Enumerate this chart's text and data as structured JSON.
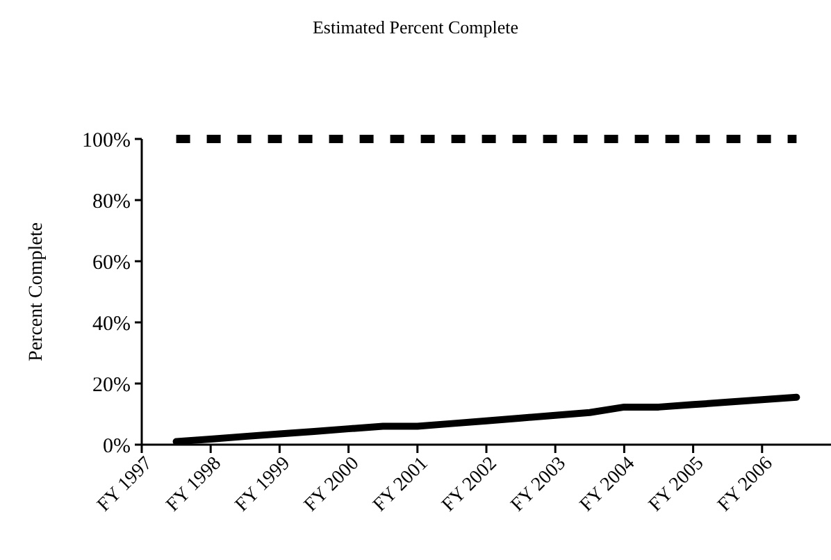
{
  "chart_data": {
    "type": "line",
    "title": "Estimated Percent Complete",
    "ylabel": "Percent Complete",
    "categories": [
      "FY 1997",
      null,
      "FY 1998",
      null,
      "FY 1999",
      null,
      "FY 2000",
      null,
      "FY 2001",
      null,
      "FY 2002",
      null,
      "FY 2003",
      null,
      "FY 2004",
      null,
      "FY 2005",
      null,
      "FY 2006",
      null
    ],
    "series": [
      {
        "color": "#000000",
        "line_style": "dashed",
        "values": [
          null,
          100,
          100,
          100,
          100,
          100,
          100,
          100,
          100,
          100,
          100,
          100,
          100,
          100,
          100,
          100,
          100,
          100,
          100,
          100
        ]
      },
      {
        "color": "#000000",
        "line_style": "solid",
        "values": [
          null,
          1,
          1.8,
          2.7,
          3.5,
          4.3,
          5.2,
          6,
          6,
          6.9,
          7.8,
          8.7,
          9.6,
          10.5,
          12.3,
          12.3,
          13.1,
          13.9,
          14.7,
          15.5
        ]
      }
    ],
    "ylim": [
      0,
      100
    ],
    "yticks": [
      {
        "value": 0,
        "label": "0%"
      },
      {
        "value": 20,
        "label": "20%"
      },
      {
        "value": 40,
        "label": "40%"
      },
      {
        "value": 60,
        "label": "60%"
      },
      {
        "value": 80,
        "label": "80%"
      },
      {
        "value": 100,
        "label": "100%"
      }
    ]
  }
}
